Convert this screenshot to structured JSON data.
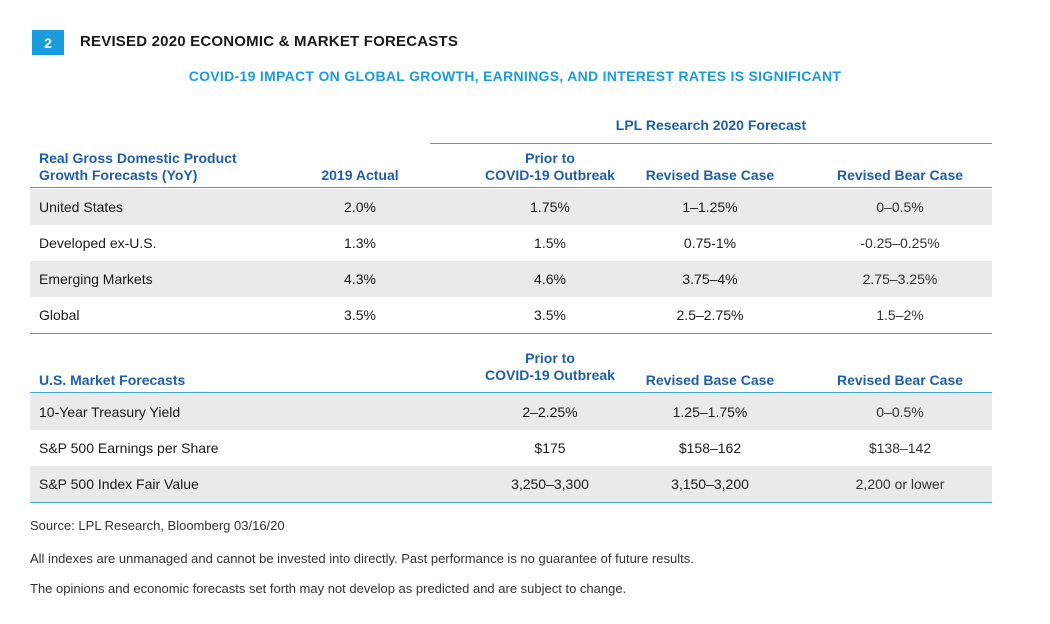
{
  "figure": {
    "number": "2",
    "title": "REVISED 2020 ECONOMIC & MARKET FORECASTS",
    "subtitle": "COVID-19 IMPACT ON GLOBAL GROWTH, EARNINGS, AND INTEREST RATES IS SIGNIFICANT"
  },
  "chart_data": {
    "type": "table",
    "group_header": "LPL Research 2020 Forecast",
    "gdp_table": {
      "headers": {
        "label_line1": "Real Gross Domestic Product",
        "label_line2": "Growth Forecasts (YoY)",
        "actual": "2019 Actual",
        "prior_line1": "Prior to",
        "prior_line2": "COVID-19 Outbreak",
        "base": "Revised Base Case",
        "bear": "Revised Bear Case"
      },
      "rows": [
        {
          "label": "United States",
          "actual": "2.0%",
          "prior": "1.75%",
          "base": "1–1.25%",
          "bear": "0–0.5%"
        },
        {
          "label": "Developed ex-U.S.",
          "actual": "1.3%",
          "prior": "1.5%",
          "base": "0.75-1%",
          "bear": "-0.25–0.25%"
        },
        {
          "label": "Emerging Markets",
          "actual": "4.3%",
          "prior": "4.6%",
          "base": "3.75–4%",
          "bear": "2.75–3.25%"
        },
        {
          "label": "Global",
          "actual": "3.5%",
          "prior": "3.5%",
          "base": "2.5–2.75%",
          "bear": "1.5–2%"
        }
      ]
    },
    "market_table": {
      "headers": {
        "label": "U.S. Market Forecasts",
        "prior_line1": "Prior to",
        "prior_line2": "COVID-19 Outbreak",
        "base": "Revised Base Case",
        "bear": "Revised Bear Case"
      },
      "rows": [
        {
          "label": "10-Year Treasury Yield",
          "prior": "2–2.25%",
          "base": "1.25–1.75%",
          "bear": "0–0.5%"
        },
        {
          "label": "S&P 500 Earnings per Share",
          "prior": "$175",
          "base": "$158–162",
          "bear": "$138–142"
        },
        {
          "label": "S&P 500 Index Fair Value",
          "prior": "3,250–3,300",
          "base": "3,150–3,200",
          "bear": "2,200 or lower"
        }
      ]
    }
  },
  "footnotes": {
    "source": "Source: LPL Research, Bloomberg  03/16/20",
    "disclaimer1": "All indexes are unmanaged and cannot be invested into directly. Past performance is no guarantee of future results.",
    "disclaimer2": "The opinions and economic forecasts set forth may not develop as predicted and are subject to change."
  },
  "colors": {
    "accent": "#1a9bdc",
    "header_text": "#1f5fa6",
    "shaded_row": "#eaeaea"
  }
}
